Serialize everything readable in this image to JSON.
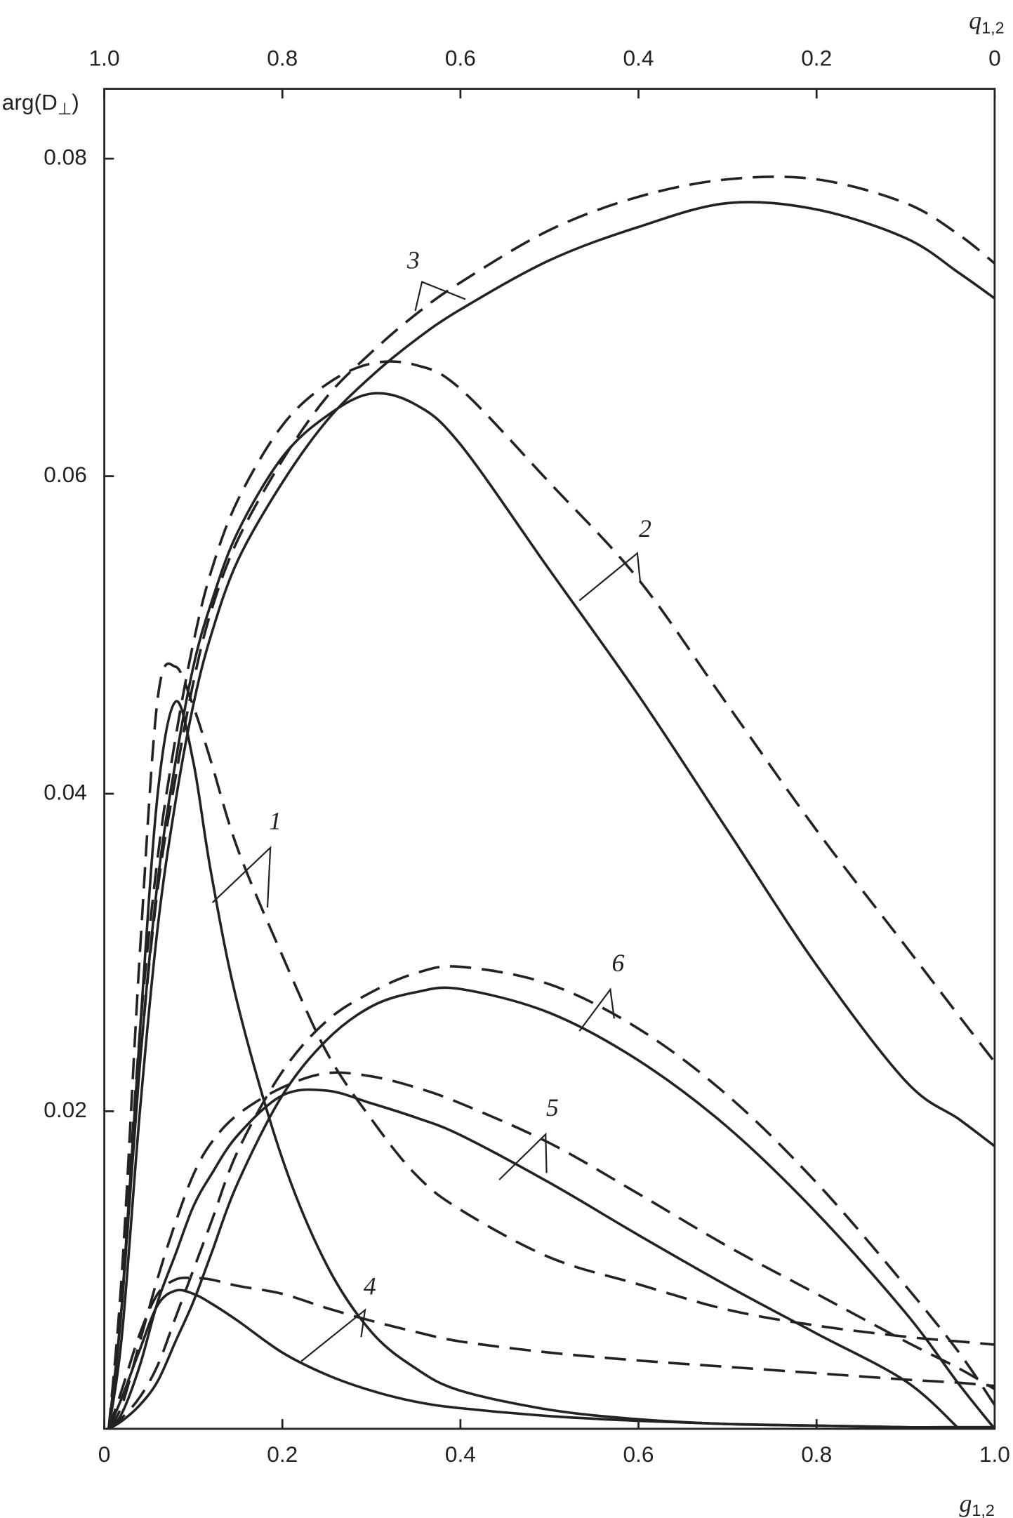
{
  "chart_data": {
    "type": "line",
    "x_label": {
      "symbol": "g",
      "subscript": "1,2"
    },
    "x2_label": {
      "symbol": "q",
      "subscript": "1,2"
    },
    "y_label": {
      "symbol": "arg(D",
      "subscript": "⊥",
      "suffix": ")"
    },
    "xlim": [
      0,
      1
    ],
    "xticks": [
      0,
      0.2,
      0.4,
      0.6,
      0.8,
      {
        "value": 1,
        "label": "1.0"
      }
    ],
    "x2lim": [
      1,
      0
    ],
    "x2ticks": [
      {
        "value": 1,
        "label": "1.0"
      },
      0.8,
      0.6,
      0.4,
      0.2,
      0
    ],
    "ylim": [
      0,
      0.0844
    ],
    "yticks": [
      0.02,
      0.04,
      0.06,
      0.08
    ],
    "grid": false,
    "x": [
      0.005,
      0.02,
      0.04,
      0.06,
      0.08,
      0.1,
      0.12,
      0.15,
      0.2,
      0.25,
      0.3,
      0.35,
      0.4,
      0.5,
      0.6,
      0.7,
      0.8,
      0.9,
      0.96,
      1.0
    ],
    "series": [
      {
        "name": "1",
        "color": "#222222",
        "dash": false,
        "values": [
          0,
          0.008,
          0.025,
          0.04,
          0.0458,
          0.042,
          0.035,
          0.0267,
          0.017,
          0.0103,
          0.0061,
          0.0038,
          0.0024,
          0.0012,
          0.0006,
          0.0003,
          0.0002,
          0.0001,
          0.0001,
          0.0001
        ]
      },
      {
        "name": "2",
        "color": "#222222",
        "dash": false,
        "values": [
          0,
          0.008,
          0.023,
          0.0345,
          0.042,
          0.048,
          0.052,
          0.0565,
          0.0612,
          0.0638,
          0.0652,
          0.0645,
          0.062,
          0.0541,
          0.0462,
          0.0377,
          0.0292,
          0.0219,
          0.0195,
          0.0178
        ]
      },
      {
        "name": "3",
        "color": "#222222",
        "dash": false,
        "values": [
          0,
          0.006,
          0.02,
          0.0316,
          0.0395,
          0.0456,
          0.05,
          0.0547,
          0.0596,
          0.0635,
          0.0663,
          0.0686,
          0.0705,
          0.0736,
          0.0757,
          0.0772,
          0.0768,
          0.075,
          0.0728,
          0.0712
        ]
      },
      {
        "name": "4",
        "color": "#222222",
        "dash": false,
        "values": [
          0,
          0.002,
          0.005,
          0.0078,
          0.0087,
          0.0085,
          0.0079,
          0.0068,
          0.0048,
          0.0034,
          0.0024,
          0.0017,
          0.0013,
          0.0008,
          0.0005,
          0.0003,
          0.0002,
          0.0001,
          0.0001,
          0.0001
        ]
      },
      {
        "name": "5",
        "color": "#222222",
        "dash": false,
        "values": [
          0,
          0.001,
          0.004,
          0.008,
          0.011,
          0.014,
          0.016,
          0.0185,
          0.021,
          0.0213,
          0.0205,
          0.0196,
          0.0185,
          0.0155,
          0.0122,
          0.009,
          0.006,
          0.003,
          0,
          null
        ]
      },
      {
        "name": "6",
        "color": "#222222",
        "dash": false,
        "values": [
          0,
          0.0005,
          0.0015,
          0.003,
          0.0055,
          0.008,
          0.011,
          0.0155,
          0.021,
          0.0245,
          0.0266,
          0.0275,
          0.0277,
          0.0262,
          0.0232,
          0.019,
          0.0136,
          0.0073,
          0.0028,
          0
        ]
      },
      {
        "color": "#222222",
        "dash": true,
        "values": [
          0,
          0.01,
          0.03,
          0.046,
          0.048,
          0.0455,
          0.042,
          0.0365,
          0.0298,
          0.0237,
          0.0195,
          0.016,
          0.0138,
          0.0108,
          0.0091,
          0.0075,
          0.0065,
          0.0058,
          0.0055,
          0.0053
        ]
      },
      {
        "color": "#222222",
        "dash": true,
        "values": [
          0,
          0.009,
          0.025,
          0.036,
          0.0435,
          0.0495,
          0.054,
          0.0585,
          0.0632,
          0.0658,
          0.0671,
          0.067,
          0.0655,
          0.0596,
          0.0535,
          0.0456,
          0.0377,
          0.0304,
          0.026,
          0.0231
        ]
      },
      {
        "color": "#222222",
        "dash": true,
        "values": [
          0,
          0.008,
          0.023,
          0.034,
          0.041,
          0.047,
          0.0515,
          0.056,
          0.061,
          0.065,
          0.0678,
          0.0702,
          0.0722,
          0.0755,
          0.0776,
          0.0787,
          0.0787,
          0.0772,
          0.0752,
          0.0734
        ]
      },
      {
        "color": "#222222",
        "dash": true,
        "values": [
          0,
          0.0025,
          0.006,
          0.0085,
          0.0094,
          0.0095,
          0.0094,
          0.009,
          0.0085,
          0.0076,
          0.0068,
          0.0061,
          0.0055,
          0.0048,
          0.0043,
          0.0039,
          0.0035,
          0.0031,
          0.0029,
          0.0027
        ]
      },
      {
        "color": "#222222",
        "dash": true,
        "values": [
          0,
          0.0015,
          0.0055,
          0.0095,
          0.013,
          0.016,
          0.018,
          0.0198,
          0.0215,
          0.0224,
          0.0222,
          0.0215,
          0.0205,
          0.018,
          0.0148,
          0.0115,
          0.0085,
          0.0055,
          0.0038,
          0.0025
        ]
      },
      {
        "color": "#222222",
        "dash": true,
        "values": [
          0,
          0.0007,
          0.002,
          0.004,
          0.007,
          0.01,
          0.013,
          0.0175,
          0.0225,
          0.0257,
          0.0275,
          0.0287,
          0.0291,
          0.028,
          0.0252,
          0.021,
          0.0155,
          0.009,
          0.0048,
          0.0015
        ]
      }
    ]
  }
}
